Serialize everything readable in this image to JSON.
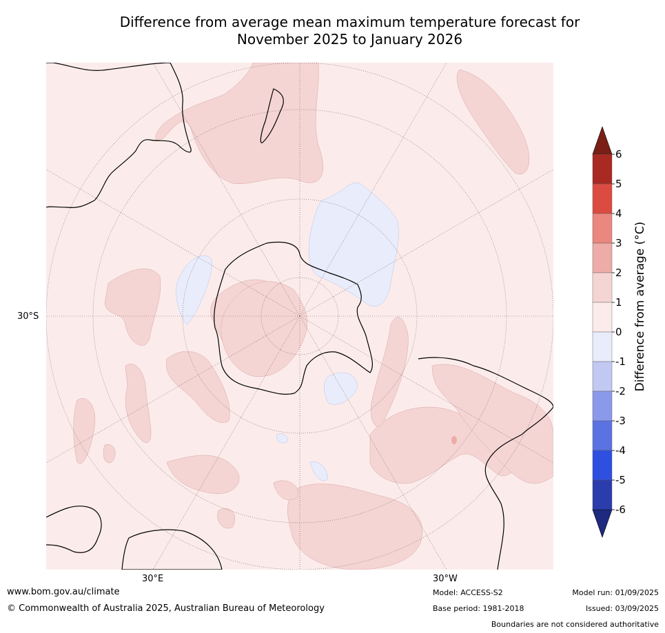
{
  "title_line1": "Difference from average mean maximum temperature forecast for",
  "title_line2": "November 2025 to January 2026",
  "map": {
    "projection": "south-polar-stereographic",
    "labels": {
      "lat": "30°S",
      "lon_east": "30°E",
      "lon_west": "30°W"
    }
  },
  "colorbar": {
    "label": "Difference from average (°C)",
    "ticks": [
      "6",
      "5",
      "4",
      "3",
      "2",
      "1",
      "0",
      "-1",
      "-2",
      "-3",
      "-4",
      "-5",
      "-6"
    ],
    "colors": {
      "over": "#7a1f16",
      "b5_6": "#a82a22",
      "b4_5": "#db4b41",
      "b3_4": "#ea877f",
      "b2_3": "#edaca7",
      "b1_2": "#f4d5d4",
      "b0_1": "#fbeceb",
      "bm1_0": "#e9ecfb",
      "bm2_m1": "#c1c8f1",
      "bm3_m2": "#8b99ea",
      "bm4_m3": "#5b72e2",
      "bm5_m4": "#2e4fe0",
      "bm6_m5": "#2b3cac",
      "under": "#1e2a80"
    }
  },
  "footer": {
    "website": "www.bom.gov.au/climate",
    "copyright": "© Commonwealth of Australia 2025, Australian Bureau of Meteorology",
    "model": "Model: ACCESS-S2",
    "base_period": "Base period: 1981-2018",
    "model_run": "Model run: 01/09/2025",
    "issued": "Issued: 03/09/2025",
    "disclaimer": "Boundaries are not considered authoritative"
  }
}
